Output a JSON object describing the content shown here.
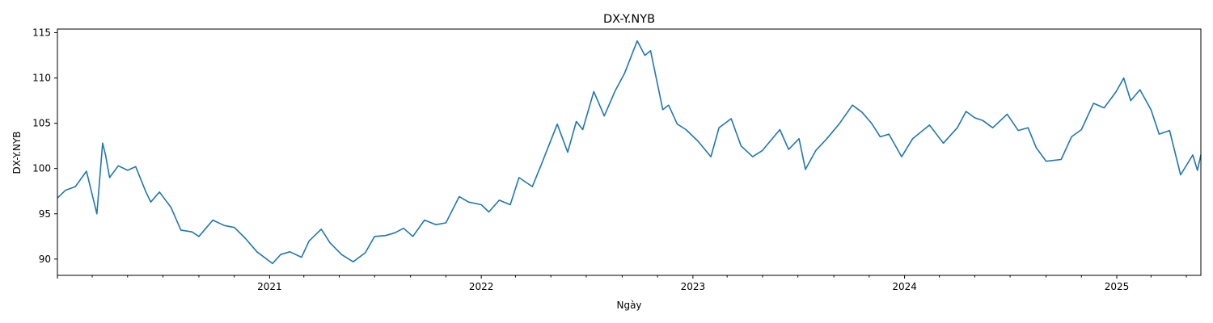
{
  "chart_data": {
    "type": "line",
    "title": "DX-Y.NYB",
    "xlabel": "Ngày",
    "ylabel": "DX-Y.NYB",
    "xlim": [
      "2020-01-01",
      "2025-05-26"
    ],
    "ylim": [
      88.2,
      115.4
    ],
    "yticks": [
      90,
      95,
      100,
      105,
      110,
      115
    ],
    "xticks": [
      {
        "date": "2021-01-01",
        "label": "2021"
      },
      {
        "date": "2022-01-01",
        "label": "2022"
      },
      {
        "date": "2023-01-01",
        "label": "2023"
      },
      {
        "date": "2024-01-01",
        "label": "2024"
      },
      {
        "date": "2025-01-01",
        "label": "2025"
      }
    ],
    "grid": false,
    "legend": "none",
    "line_color": "#1f77b4",
    "series": [
      {
        "x": [
          "2020-01-02",
          "2020-01-15",
          "2020-02-01",
          "2020-02-20",
          "2020-03-09",
          "2020-03-19",
          "2020-03-24",
          "2020-03-31",
          "2020-04-15",
          "2020-05-01",
          "2020-05-15",
          "2020-06-01",
          "2020-06-10",
          "2020-06-25",
          "2020-07-15",
          "2020-08-01",
          "2020-08-20",
          "2020-09-01",
          "2020-09-25",
          "2020-10-15",
          "2020-11-01",
          "2020-11-20",
          "2020-12-10",
          "2021-01-06",
          "2021-01-20",
          "2021-02-05",
          "2021-02-25",
          "2021-03-10",
          "2021-03-31",
          "2021-04-15",
          "2021-05-05",
          "2021-05-25",
          "2021-06-15",
          "2021-07-01",
          "2021-07-20",
          "2021-08-05",
          "2021-08-20",
          "2021-09-05",
          "2021-09-25",
          "2021-10-15",
          "2021-11-01",
          "2021-11-24",
          "2021-12-10",
          "2022-01-01",
          "2022-01-14",
          "2022-02-01",
          "2022-02-20",
          "2022-03-07",
          "2022-03-30",
          "2022-04-15",
          "2022-05-12",
          "2022-05-30",
          "2022-06-14",
          "2022-06-25",
          "2022-07-14",
          "2022-08-01",
          "2022-08-20",
          "2022-09-05",
          "2022-09-27",
          "2022-10-10",
          "2022-10-20",
          "2022-11-10",
          "2022-11-20",
          "2022-12-05",
          "2022-12-20",
          "2023-01-10",
          "2023-02-01",
          "2023-02-15",
          "2023-03-08",
          "2023-03-25",
          "2023-04-14",
          "2023-05-01",
          "2023-05-31",
          "2023-06-15",
          "2023-07-03",
          "2023-07-14",
          "2023-08-01",
          "2023-08-20",
          "2023-09-10",
          "2023-10-03",
          "2023-10-20",
          "2023-11-05",
          "2023-11-20",
          "2023-12-05",
          "2023-12-27",
          "2024-01-15",
          "2024-02-13",
          "2024-03-08",
          "2024-04-01",
          "2024-04-16",
          "2024-05-01",
          "2024-05-15",
          "2024-06-01",
          "2024-06-26",
          "2024-07-15",
          "2024-08-01",
          "2024-08-15",
          "2024-09-01",
          "2024-09-27",
          "2024-10-15",
          "2024-11-01",
          "2024-11-22",
          "2024-12-10",
          "2024-12-31",
          "2025-01-13",
          "2025-01-25",
          "2025-02-10",
          "2025-03-01",
          "2025-03-15",
          "2025-04-02",
          "2025-04-21",
          "2025-05-12",
          "2025-05-20",
          "2025-05-26"
        ],
        "y": [
          96.8,
          97.6,
          98.0,
          99.7,
          95.0,
          102.8,
          101.5,
          99.0,
          100.3,
          99.8,
          100.2,
          97.5,
          96.3,
          97.4,
          95.7,
          93.2,
          93.0,
          92.5,
          94.3,
          93.7,
          93.5,
          92.3,
          90.8,
          89.5,
          90.5,
          90.8,
          90.2,
          92.0,
          93.3,
          91.8,
          90.5,
          89.7,
          90.7,
          92.5,
          92.6,
          92.9,
          93.4,
          92.5,
          94.3,
          93.8,
          94.0,
          96.9,
          96.3,
          96.0,
          95.2,
          96.5,
          96.0,
          99.0,
          98.0,
          100.5,
          104.9,
          101.8,
          105.2,
          104.3,
          108.5,
          105.8,
          108.6,
          110.5,
          114.1,
          112.5,
          113.0,
          106.5,
          107.0,
          104.9,
          104.3,
          103.0,
          101.3,
          104.5,
          105.5,
          102.5,
          101.3,
          102.0,
          104.3,
          102.1,
          103.3,
          99.9,
          102.0,
          103.3,
          104.9,
          107.0,
          106.2,
          105.0,
          103.5,
          103.8,
          101.3,
          103.3,
          104.8,
          102.8,
          104.5,
          106.3,
          105.6,
          105.3,
          104.5,
          106.0,
          104.2,
          104.5,
          102.3,
          100.8,
          101.0,
          103.5,
          104.3,
          107.2,
          106.7,
          108.5,
          110.0,
          107.5,
          108.7,
          106.5,
          103.8,
          104.2,
          99.3,
          101.5,
          99.8,
          101.5
        ]
      }
    ]
  }
}
